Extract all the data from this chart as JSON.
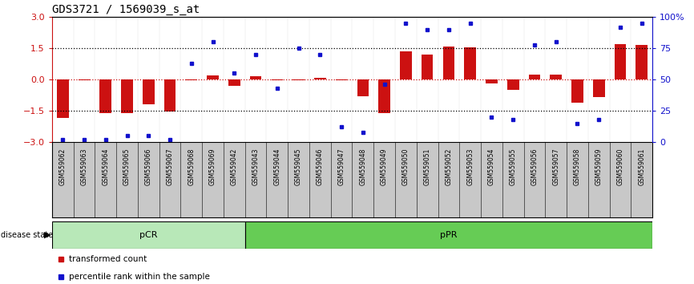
{
  "title": "GDS3721 / 1569039_s_at",
  "samples": [
    "GSM559062",
    "GSM559063",
    "GSM559064",
    "GSM559065",
    "GSM559066",
    "GSM559067",
    "GSM559068",
    "GSM559069",
    "GSM559042",
    "GSM559043",
    "GSM559044",
    "GSM559045",
    "GSM559046",
    "GSM559047",
    "GSM559048",
    "GSM559049",
    "GSM559050",
    "GSM559051",
    "GSM559052",
    "GSM559053",
    "GSM559054",
    "GSM559055",
    "GSM559056",
    "GSM559057",
    "GSM559058",
    "GSM559059",
    "GSM559060",
    "GSM559061"
  ],
  "bar_values": [
    -1.85,
    -0.05,
    -1.62,
    -1.62,
    -1.2,
    -1.55,
    -0.05,
    0.2,
    -0.3,
    0.15,
    -0.05,
    -0.05,
    0.1,
    -0.05,
    -0.8,
    -1.6,
    1.35,
    1.2,
    1.6,
    1.55,
    -0.2,
    -0.5,
    0.25,
    0.25,
    -1.1,
    -0.85,
    1.7,
    1.65
  ],
  "percentile_values": [
    2,
    2,
    2,
    5,
    5,
    2,
    63,
    80,
    55,
    70,
    43,
    75,
    70,
    12,
    8,
    46,
    95,
    90,
    90,
    95,
    20,
    18,
    78,
    80,
    15,
    18,
    92,
    95
  ],
  "pCR_count": 9,
  "ylim": [
    -3,
    3
  ],
  "yticks_left": [
    -3,
    -1.5,
    0,
    1.5,
    3
  ],
  "yticks_right": [
    0,
    25,
    50,
    75,
    100
  ],
  "bar_color": "#cc1111",
  "dot_color": "#1111cc",
  "pCR_color": "#b8e8b8",
  "pPR_color": "#66cc55",
  "tick_bg_color": "#c8c8c8",
  "title_fontsize": 10
}
